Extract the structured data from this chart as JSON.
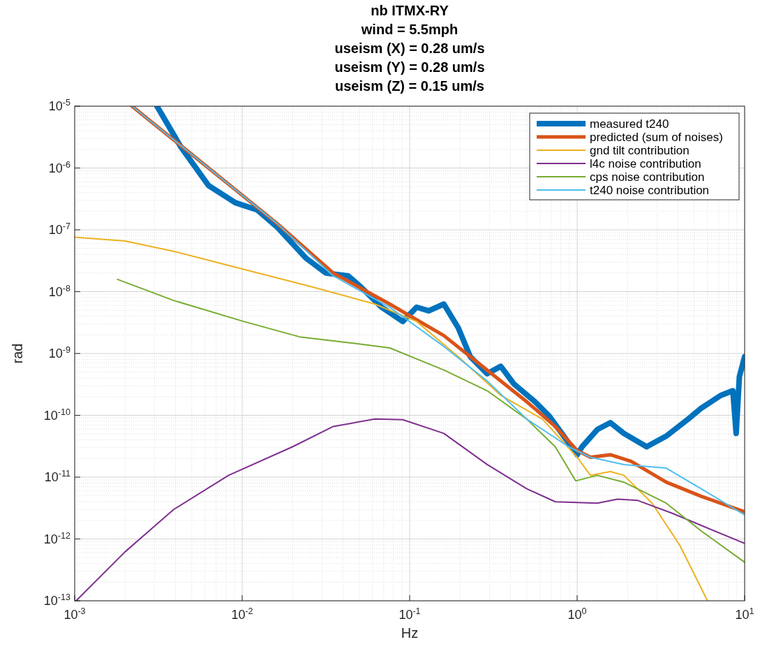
{
  "chart_data": {
    "type": "line",
    "title": "nb ITMX-RY\nwind = 5.5mph\nuseism (X) = 0.28 um/s\nuseism (Y) = 0.28 um/s\nuseism (Z) = 0.15 um/s",
    "xlabel": "Hz",
    "ylabel": "rad",
    "log": "xy",
    "grid": true,
    "legend": "top right",
    "line_style": "solid",
    "xlim": [
      0.001,
      10
    ],
    "ylim": [
      1e-13,
      1e-05
    ],
    "xticks": [
      {
        "value": 0.001,
        "label": "10$^{-3}$"
      },
      {
        "value": 0.01,
        "label": "10$^{-2}$"
      },
      {
        "value": 0.1,
        "label": "10$^{-1}$"
      },
      {
        "value": 1,
        "label": "10$^{0}$"
      },
      {
        "value": 10,
        "label": "10$^{1}$"
      }
    ],
    "yticks": [
      {
        "value": 1e-13,
        "label": "10$^{-13}$"
      },
      {
        "value": 1e-12,
        "label": "10$^{-12}$"
      },
      {
        "value": 1e-11,
        "label": "10$^{-11}$"
      },
      {
        "value": 1e-10,
        "label": "10$^{-10}$"
      },
      {
        "value": 1e-09,
        "label": "10$^{-9}$"
      },
      {
        "value": 1e-08,
        "label": "10$^{-8}$"
      },
      {
        "value": 1e-07,
        "label": "10$^{-7}$"
      },
      {
        "value": 1e-06,
        "label": "10$^{-6}$"
      },
      {
        "value": 1e-05,
        "label": "10$^{-5}$"
      }
    ],
    "series": [
      {
        "name": "measured t240",
        "color": "#0072bd",
        "x": [
          0.0031,
          0.0043,
          0.0063,
          0.0091,
          0.0123,
          0.0162,
          0.024,
          0.0316,
          0.043,
          0.051,
          0.068,
          0.091,
          0.11,
          0.13,
          0.16,
          0.195,
          0.23,
          0.29,
          0.35,
          0.42,
          0.56,
          0.68,
          0.81,
          1.0,
          1.07,
          1.32,
          1.58,
          1.9,
          2.6,
          3.4,
          4.6,
          5.5,
          7.2,
          8.5,
          8.9,
          9.3,
          10
        ],
        "values": [
          1e-05,
          2.2e-06,
          5.2e-07,
          2.75e-07,
          2.1e-07,
          1.1e-07,
          3.5e-08,
          2e-08,
          1.8e-08,
          1.2e-08,
          5.6e-09,
          3.3e-09,
          5.6e-09,
          4.9e-09,
          6.3e-09,
          2.6e-09,
          8.9e-10,
          4.7e-10,
          6.2e-10,
          3.2e-10,
          1.66e-10,
          9.8e-11,
          5.1e-11,
          2.3e-11,
          3.1e-11,
          5.9e-11,
          7.6e-11,
          5.1e-11,
          3.1e-11,
          4.6e-11,
          8.7e-11,
          1.3e-10,
          2.1e-10,
          2.5e-10,
          5.1e-11,
          4.2e-10,
          8.9e-10
        ]
      },
      {
        "name": "predicted (sum of noises)",
        "color": "#d95319",
        "x": [
          0.0022,
          0.0063,
          0.0162,
          0.035,
          0.076,
          0.16,
          0.29,
          0.5,
          0.74,
          1.0,
          1.2,
          1.58,
          2.1,
          3.4,
          5.5,
          10
        ],
        "values": [
          1e-05,
          1e-06,
          1.26e-07,
          2e-08,
          6.3e-09,
          1.95e-09,
          5.4e-10,
          1.66e-10,
          6.6e-11,
          2.7e-11,
          2.1e-11,
          2.3e-11,
          1.8e-11,
          8.3e-12,
          4.9e-12,
          2.75e-12
        ]
      },
      {
        "name": "gnd tilt contribution",
        "color": "#edb120",
        "x": [
          0.001,
          0.002,
          0.0039,
          0.0102,
          0.026,
          0.062,
          0.11,
          0.195,
          0.35,
          0.62,
          1.0,
          1.2,
          1.58,
          1.9,
          2.8,
          4.1,
          6.0
        ],
        "values": [
          7.6e-08,
          6.6e-08,
          4.5e-08,
          2.3e-08,
          1.2e-08,
          6.3e-09,
          3.3e-09,
          8.9e-10,
          2.1e-10,
          8.7e-11,
          2.1e-11,
          1.07e-11,
          1.23e-11,
          1.07e-11,
          3.8e-12,
          7.9e-13,
          1e-13
        ]
      },
      {
        "name": "l4c noise contribution",
        "color": "#7e2f8e",
        "x": [
          0.00102,
          0.002,
          0.0039,
          0.0083,
          0.02,
          0.035,
          0.062,
          0.091,
          0.16,
          0.29,
          0.5,
          0.74,
          1.32,
          1.74,
          2.3,
          3.7,
          6.6,
          10
        ],
        "values": [
          1e-13,
          6.2e-13,
          3e-12,
          1.07e-11,
          3.1e-11,
          6.6e-11,
          8.7e-11,
          8.5e-11,
          5.1e-11,
          1.6e-11,
          6.5e-12,
          4e-12,
          3.8e-12,
          4.4e-12,
          4.2e-12,
          2.6e-12,
          1.35e-12,
          8.5e-13
        ]
      },
      {
        "name": "cps noise contribution",
        "color": "#77ac30",
        "x": [
          0.0018,
          0.0039,
          0.0102,
          0.022,
          0.043,
          0.076,
          0.16,
          0.29,
          0.5,
          0.74,
          0.98,
          1.32,
          1.9,
          3.4,
          5.5,
          10
        ],
        "values": [
          1.58e-08,
          7.2e-09,
          3.3e-09,
          1.86e-09,
          1.5e-09,
          1.23e-09,
          5.4e-10,
          2.5e-10,
          8.7e-11,
          3.1e-11,
          8.7e-12,
          1.07e-11,
          8.3e-12,
          3.8e-12,
          1.35e-12,
          4.2e-13
        ]
      },
      {
        "name": "t240 noise contribution",
        "color": "#4dbeee",
        "x": [
          0.0022,
          0.0063,
          0.0162,
          0.035,
          0.076,
          0.16,
          0.29,
          0.5,
          0.89,
          1.2,
          1.9,
          3.4,
          5.5,
          10
        ],
        "values": [
          1e-05,
          1e-06,
          1.26e-07,
          1.8e-08,
          5.6e-09,
          1.3e-09,
          3.6e-10,
          8.7e-11,
          3.1e-11,
          2.1e-11,
          1.6e-11,
          1.4e-11,
          6.5e-12,
          2.45e-12
        ]
      }
    ]
  }
}
